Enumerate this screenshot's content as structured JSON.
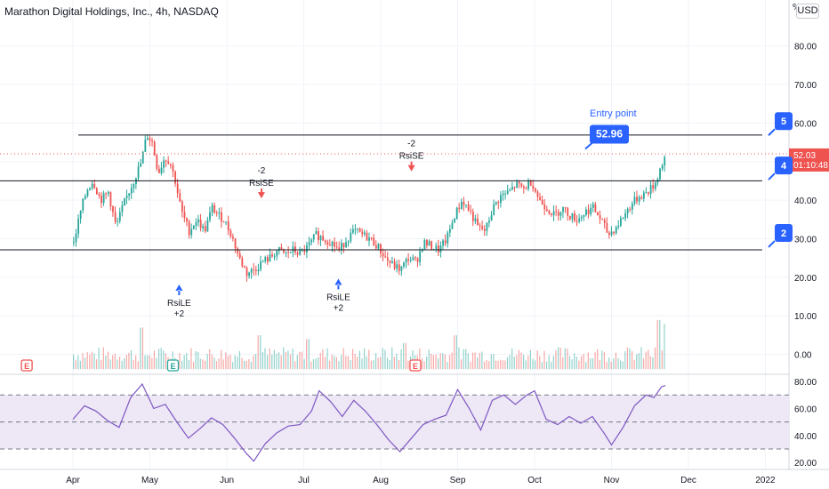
{
  "header": {
    "title": "Marathon Digital Holdings, Inc., 4h, NASDAQ",
    "currency": "USD",
    "pct_glyph": "%"
  },
  "colors": {
    "up": "#26a69a",
    "down": "#ef5350",
    "rsi_line": "#7e57c2",
    "rsi_band": "#ede7f6",
    "entry_label": "#2962ff",
    "last_price_bg": "#ef5350",
    "earnings_icon": "#ef5350",
    "earnings_icon_green": "#26a69a",
    "buy_arrow": "#2962ff",
    "sell_arrow": "#ef5350"
  },
  "annotations": {
    "entry_label": "Entry point",
    "entry_price": "52.96",
    "last_price": "52.03",
    "countdown": "01:10:48",
    "right_callouts": [
      "5",
      "4",
      "2"
    ],
    "sell_signals": [
      {
        "label": "RsiSE",
        "qty": "-2"
      },
      {
        "label": "RsiSE",
        "qty": "-2"
      }
    ],
    "buy_signals": [
      {
        "label": "RsiLE",
        "qty": "+2"
      },
      {
        "label": "RsiLE",
        "qty": "+2"
      }
    ],
    "earnings_icons": [
      "E",
      "E",
      "E"
    ]
  },
  "chart_data": [
    {
      "type": "candlestick",
      "title": "Marathon Digital Holdings, Inc., 4h, NASDAQ",
      "x_ticks": [
        "Apr",
        "May",
        "Jun",
        "Jul",
        "Aug",
        "Sep",
        "Oct",
        "Nov",
        "Dec",
        "2022"
      ],
      "y_ticks": [
        "80.00",
        "70.00",
        "60.00",
        "50.00",
        "40.00",
        "30.00",
        "20.00",
        "10.00",
        "0.00"
      ],
      "ylim": [
        -2,
        90
      ],
      "horizontal_levels": [
        56.9,
        45.0,
        27.1
      ],
      "series": [
        {
          "name": "price",
          "points": [
            {
              "m": 0.0,
              "c": 29
            },
            {
              "m": 0.1,
              "c": 38
            },
            {
              "m": 0.18,
              "c": 43
            },
            {
              "m": 0.25,
              "c": 45
            },
            {
              "m": 0.35,
              "c": 40
            },
            {
              "m": 0.45,
              "c": 42
            },
            {
              "m": 0.55,
              "c": 33
            },
            {
              "m": 0.65,
              "c": 39
            },
            {
              "m": 0.8,
              "c": 46
            },
            {
              "m": 0.88,
              "c": 50
            },
            {
              "m": 0.95,
              "c": 57
            },
            {
              "m": 1.02,
              "c": 55
            },
            {
              "m": 1.1,
              "c": 47
            },
            {
              "m": 1.18,
              "c": 51
            },
            {
              "m": 1.25,
              "c": 50
            },
            {
              "m": 1.32,
              "c": 45
            },
            {
              "m": 1.4,
              "c": 37
            },
            {
              "m": 1.5,
              "c": 32
            },
            {
              "m": 1.6,
              "c": 35
            },
            {
              "m": 1.7,
              "c": 32
            },
            {
              "m": 1.8,
              "c": 38
            },
            {
              "m": 1.88,
              "c": 36
            },
            {
              "m": 1.95,
              "c": 35
            },
            {
              "m": 2.05,
              "c": 31
            },
            {
              "m": 2.15,
              "c": 25
            },
            {
              "m": 2.25,
              "c": 21
            },
            {
              "m": 2.35,
              "c": 22
            },
            {
              "m": 2.45,
              "c": 24
            },
            {
              "m": 2.55,
              "c": 25
            },
            {
              "m": 2.65,
              "c": 27
            },
            {
              "m": 2.75,
              "c": 26
            },
            {
              "m": 2.85,
              "c": 27
            },
            {
              "m": 2.95,
              "c": 26
            },
            {
              "m": 3.05,
              "c": 28
            },
            {
              "m": 3.15,
              "c": 31
            },
            {
              "m": 3.25,
              "c": 30
            },
            {
              "m": 3.35,
              "c": 29
            },
            {
              "m": 3.45,
              "c": 27
            },
            {
              "m": 3.55,
              "c": 30
            },
            {
              "m": 3.65,
              "c": 32
            },
            {
              "m": 3.75,
              "c": 31
            },
            {
              "m": 3.85,
              "c": 30
            },
            {
              "m": 3.95,
              "c": 28
            },
            {
              "m": 4.05,
              "c": 25
            },
            {
              "m": 4.15,
              "c": 23
            },
            {
              "m": 4.25,
              "c": 22
            },
            {
              "m": 4.35,
              "c": 25
            },
            {
              "m": 4.45,
              "c": 24
            },
            {
              "m": 4.55,
              "c": 29
            },
            {
              "m": 4.65,
              "c": 28
            },
            {
              "m": 4.75,
              "c": 27
            },
            {
              "m": 4.85,
              "c": 30
            },
            {
              "m": 4.95,
              "c": 36
            },
            {
              "m": 5.05,
              "c": 40
            },
            {
              "m": 5.15,
              "c": 37
            },
            {
              "m": 5.25,
              "c": 33
            },
            {
              "m": 5.35,
              "c": 32
            },
            {
              "m": 5.45,
              "c": 38
            },
            {
              "m": 5.55,
              "c": 41
            },
            {
              "m": 5.65,
              "c": 42
            },
            {
              "m": 5.75,
              "c": 44
            },
            {
              "m": 5.85,
              "c": 43
            },
            {
              "m": 5.95,
              "c": 45
            },
            {
              "m": 6.05,
              "c": 40
            },
            {
              "m": 6.15,
              "c": 38
            },
            {
              "m": 6.25,
              "c": 36
            },
            {
              "m": 6.35,
              "c": 38
            },
            {
              "m": 6.45,
              "c": 36
            },
            {
              "m": 6.55,
              "c": 35
            },
            {
              "m": 6.65,
              "c": 37
            },
            {
              "m": 6.75,
              "c": 38
            },
            {
              "m": 6.85,
              "c": 35
            },
            {
              "m": 6.95,
              "c": 31
            },
            {
              "m": 7.05,
              "c": 33
            },
            {
              "m": 7.15,
              "c": 36
            },
            {
              "m": 7.25,
              "c": 39
            },
            {
              "m": 7.35,
              "c": 41
            },
            {
              "m": 7.45,
              "c": 42
            },
            {
              "m": 7.55,
              "c": 44
            },
            {
              "m": 7.62,
              "c": 48
            },
            {
              "m": 7.7,
              "c": 52.03
            }
          ]
        },
        {
          "name": "RSI",
          "points": [
            {
              "m": 0.0,
              "r": 52
            },
            {
              "m": 0.15,
              "r": 62
            },
            {
              "m": 0.3,
              "r": 58
            },
            {
              "m": 0.45,
              "r": 51
            },
            {
              "m": 0.6,
              "r": 46
            },
            {
              "m": 0.75,
              "r": 68
            },
            {
              "m": 0.9,
              "r": 78
            },
            {
              "m": 1.05,
              "r": 60
            },
            {
              "m": 1.2,
              "r": 63
            },
            {
              "m": 1.35,
              "r": 50
            },
            {
              "m": 1.5,
              "r": 38
            },
            {
              "m": 1.65,
              "r": 45
            },
            {
              "m": 1.8,
              "r": 53
            },
            {
              "m": 1.95,
              "r": 48
            },
            {
              "m": 2.1,
              "r": 38
            },
            {
              "m": 2.25,
              "r": 27
            },
            {
              "m": 2.35,
              "r": 21
            },
            {
              "m": 2.5,
              "r": 34
            },
            {
              "m": 2.65,
              "r": 42
            },
            {
              "m": 2.8,
              "r": 47
            },
            {
              "m": 2.95,
              "r": 48
            },
            {
              "m": 3.1,
              "r": 58
            },
            {
              "m": 3.2,
              "r": 73
            },
            {
              "m": 3.35,
              "r": 65
            },
            {
              "m": 3.5,
              "r": 54
            },
            {
              "m": 3.65,
              "r": 66
            },
            {
              "m": 3.8,
              "r": 58
            },
            {
              "m": 3.95,
              "r": 48
            },
            {
              "m": 4.1,
              "r": 37
            },
            {
              "m": 4.25,
              "r": 28
            },
            {
              "m": 4.4,
              "r": 38
            },
            {
              "m": 4.55,
              "r": 48
            },
            {
              "m": 4.7,
              "r": 52
            },
            {
              "m": 4.85,
              "r": 55
            },
            {
              "m": 5.0,
              "r": 74
            },
            {
              "m": 5.15,
              "r": 60
            },
            {
              "m": 5.3,
              "r": 44
            },
            {
              "m": 5.45,
              "r": 66
            },
            {
              "m": 5.6,
              "r": 70
            },
            {
              "m": 5.75,
              "r": 63
            },
            {
              "m": 5.9,
              "r": 70
            },
            {
              "m": 6.0,
              "r": 73
            },
            {
              "m": 6.15,
              "r": 52
            },
            {
              "m": 6.3,
              "r": 48
            },
            {
              "m": 6.45,
              "r": 54
            },
            {
              "m": 6.6,
              "r": 49
            },
            {
              "m": 6.75,
              "r": 54
            },
            {
              "m": 6.9,
              "r": 42
            },
            {
              "m": 7.0,
              "r": 33
            },
            {
              "m": 7.15,
              "r": 46
            },
            {
              "m": 7.3,
              "r": 62
            },
            {
              "m": 7.45,
              "r": 70
            },
            {
              "m": 7.55,
              "r": 68
            },
            {
              "m": 7.65,
              "r": 76
            },
            {
              "m": 7.7,
              "r": 77
            }
          ]
        }
      ],
      "rsi_y_ticks": [
        "80.00",
        "60.00",
        "40.00",
        "20.00"
      ],
      "rsi_levels": [
        70,
        50,
        30
      ],
      "volume_peaks": [
        {
          "m": 0.9,
          "v": 11
        },
        {
          "m": 2.4,
          "v": 9
        },
        {
          "m": 3.05,
          "v": 8
        },
        {
          "m": 4.3,
          "v": 7
        },
        {
          "m": 4.95,
          "v": 9
        },
        {
          "m": 7.6,
          "v": 13
        },
        {
          "m": 7.7,
          "v": 12
        }
      ]
    }
  ]
}
